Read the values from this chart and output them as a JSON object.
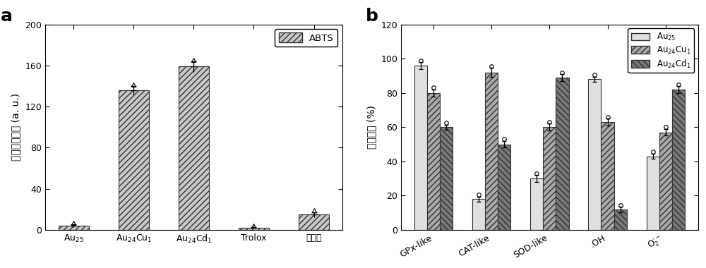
{
  "panel_a": {
    "categories_math": [
      "$\\mathrm{Au_{25}}$",
      "$\\mathrm{Au_{24}Cu_1}$",
      "$\\mathrm{Au_{24}Cd_1}$",
      "Trolox",
      "花青素"
    ],
    "values": [
      4.0,
      136.0,
      159.0,
      2.0,
      15.0
    ],
    "errors": [
      1.5,
      4.0,
      5.0,
      0.5,
      2.5
    ],
    "ylabel": "总抗氧化能力 (a. u.)",
    "ylim": [
      0,
      200
    ],
    "yticks": [
      0,
      40,
      80,
      120,
      160,
      200
    ],
    "legend_label": "ABTS",
    "panel_label": "a",
    "hatch": "////",
    "bar_color": "#c8c8c8",
    "bar_edgecolor": "#333333",
    "bar_width": 0.5
  },
  "panel_b": {
    "categories": [
      "GPx-like",
      "CAT-like",
      "SOD-like",
      ".OH",
      "$\\mathrm{O_2^{\\cdot-}}$"
    ],
    "series": [
      {
        "label": "$\\mathrm{Au_{25}}$",
        "values": [
          96.0,
          18.0,
          30.0,
          88.0,
          43.0
        ],
        "errors": [
          2.0,
          1.5,
          2.0,
          1.5,
          1.5
        ],
        "hatch": "",
        "bar_color": "#e0e0e0",
        "bar_edgecolor": "#333333"
      },
      {
        "label": "$\\mathrm{Au_{24}Cu_1}$",
        "values": [
          80.0,
          92.0,
          60.0,
          63.0,
          57.0
        ],
        "errors": [
          2.0,
          2.5,
          2.0,
          2.0,
          2.0
        ],
        "hatch": "////",
        "bar_color": "#a8a8a8",
        "bar_edgecolor": "#333333"
      },
      {
        "label": "$\\mathrm{Au_{24}Cd_1}$",
        "values": [
          60.0,
          50.0,
          89.0,
          12.0,
          82.0
        ],
        "errors": [
          1.5,
          2.0,
          2.0,
          1.5,
          2.0
        ],
        "hatch": "\\\\\\\\",
        "bar_color": "#787878",
        "bar_edgecolor": "#333333"
      }
    ],
    "ylabel": "清除效率 (%)",
    "ylim": [
      0,
      120
    ],
    "yticks": [
      0,
      20,
      40,
      60,
      80,
      100,
      120
    ],
    "panel_label": "b",
    "bar_width": 0.22
  },
  "figure_bg": "#ffffff",
  "axes_bg": "#ffffff",
  "font_color": "#000000"
}
